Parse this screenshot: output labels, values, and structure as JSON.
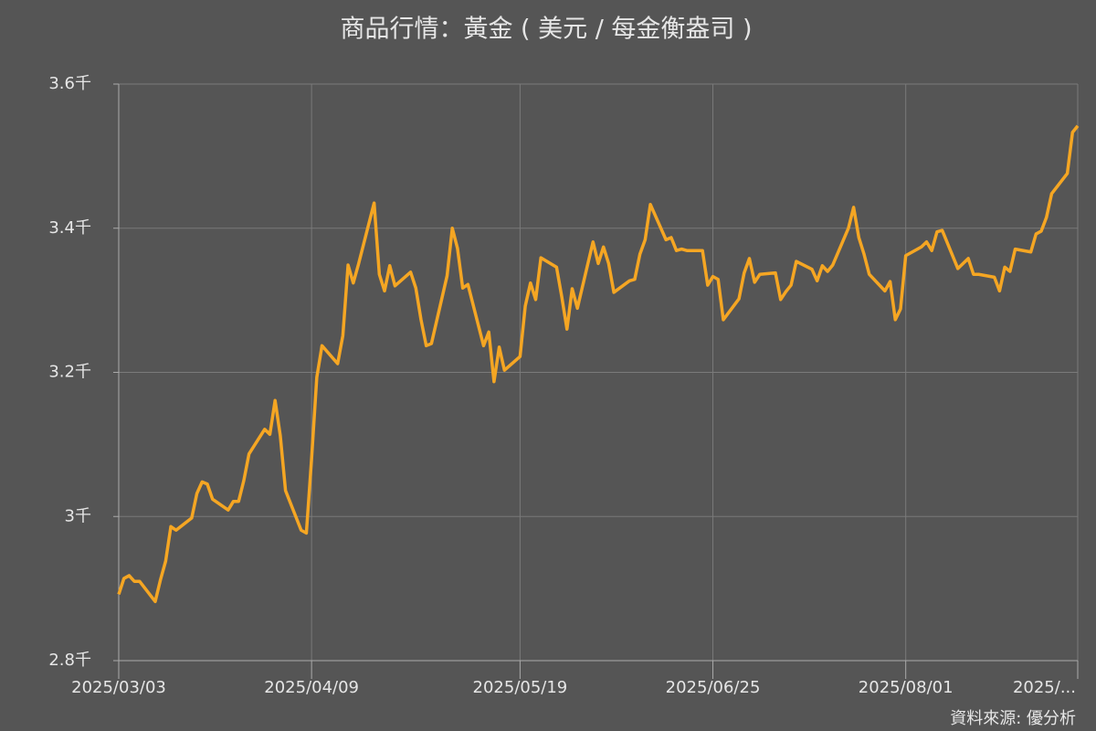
{
  "chart_data": {
    "type": "line",
    "title": "商品行情：黃金 ( 美元 / 每金衡盎司 )",
    "source": "資料來源: 優分析",
    "x": [
      "2025/03/03",
      "2025/03/04",
      "2025/03/05",
      "2025/03/06",
      "2025/03/07",
      "2025/03/10",
      "2025/03/11",
      "2025/03/12",
      "2025/03/13",
      "2025/03/14",
      "2025/03/17",
      "2025/03/18",
      "2025/03/19",
      "2025/03/20",
      "2025/03/21",
      "2025/03/24",
      "2025/03/25",
      "2025/03/26",
      "2025/03/27",
      "2025/03/28",
      "2025/03/31",
      "2025/04/01",
      "2025/04/02",
      "2025/04/03",
      "2025/04/04",
      "2025/04/07",
      "2025/04/08",
      "2025/04/09",
      "2025/04/10",
      "2025/04/11",
      "2025/04/14",
      "2025/04/15",
      "2025/04/16",
      "2025/04/17",
      "2025/04/18",
      "2025/04/21",
      "2025/04/22",
      "2025/04/23",
      "2025/04/24",
      "2025/04/25",
      "2025/04/28",
      "2025/04/29",
      "2025/04/30",
      "2025/05/01",
      "2025/05/02",
      "2025/05/05",
      "2025/05/06",
      "2025/05/07",
      "2025/05/08",
      "2025/05/09",
      "2025/05/12",
      "2025/05/13",
      "2025/05/14",
      "2025/05/15",
      "2025/05/16",
      "2025/05/19",
      "2025/05/20",
      "2025/05/21",
      "2025/05/22",
      "2025/05/23",
      "2025/05/26",
      "2025/05/27",
      "2025/05/28",
      "2025/05/29",
      "2025/05/30",
      "2025/06/02",
      "2025/06/03",
      "2025/06/04",
      "2025/06/05",
      "2025/06/06",
      "2025/06/09",
      "2025/06/10",
      "2025/06/11",
      "2025/06/12",
      "2025/06/13",
      "2025/06/16",
      "2025/06/17",
      "2025/06/18",
      "2025/06/19",
      "2025/06/20",
      "2025/06/23",
      "2025/06/24",
      "2025/06/25",
      "2025/06/26",
      "2025/06/27",
      "2025/06/30",
      "2025/07/01",
      "2025/07/02",
      "2025/07/03",
      "2025/07/04",
      "2025/07/07",
      "2025/07/08",
      "2025/07/09",
      "2025/07/10",
      "2025/07/11",
      "2025/07/14",
      "2025/07/15",
      "2025/07/16",
      "2025/07/17",
      "2025/07/18",
      "2025/07/21",
      "2025/07/22",
      "2025/07/23",
      "2025/07/24",
      "2025/07/25",
      "2025/07/28",
      "2025/07/29",
      "2025/07/30",
      "2025/07/31",
      "2025/08/01",
      "2025/08/04",
      "2025/08/05",
      "2025/08/06",
      "2025/08/07",
      "2025/08/08",
      "2025/08/11",
      "2025/08/12",
      "2025/08/13",
      "2025/08/14",
      "2025/08/15",
      "2025/08/18",
      "2025/08/19",
      "2025/08/20",
      "2025/08/21",
      "2025/08/22",
      "2025/08/25",
      "2025/08/26",
      "2025/08/27",
      "2025/08/28",
      "2025/08/29",
      "2025/09/01",
      "2025/09/02",
      "2025/09/03"
    ],
    "series": [
      {
        "name": "黃金",
        "color": "#f5a623",
        "values": [
          2892,
          2914,
          2918,
          2910,
          2910,
          2882,
          2912,
          2938,
          2986,
          2981,
          2998,
          3032,
          3048,
          3045,
          3024,
          3009,
          3021,
          3021,
          3050,
          3087,
          3121,
          3114,
          3161,
          3112,
          3036,
          2981,
          2977,
          3080,
          3193,
          3237,
          3212,
          3251,
          3349,
          3324,
          3350,
          3435,
          3336,
          3313,
          3348,
          3320,
          3339,
          3317,
          3273,
          3237,
          3240,
          3334,
          3400,
          3372,
          3317,
          3322,
          3237,
          3256,
          3187,
          3235,
          3203,
          3222,
          3292,
          3324,
          3301,
          3359,
          3346,
          3305,
          3260,
          3316,
          3289,
          3381,
          3351,
          3374,
          3351,
          3311,
          3327,
          3329,
          3364,
          3384,
          3433,
          3384,
          3387,
          3369,
          3371,
          3369,
          3369,
          3321,
          3333,
          3329,
          3273,
          3302,
          3338,
          3358,
          3325,
          3336,
          3338,
          3301,
          3312,
          3321,
          3354,
          3343,
          3327,
          3348,
          3340,
          3349,
          3400,
          3429,
          3387,
          3364,
          3336,
          3313,
          3326,
          3273,
          3288,
          3362,
          3374,
          3381,
          3369,
          3395,
          3397,
          3344,
          3351,
          3358,
          3336,
          3336,
          3332,
          3313,
          3346,
          3340,
          3371,
          3367,
          3392,
          3396,
          3415,
          3448,
          3476,
          3533,
          3542
        ]
      }
    ],
    "xlim": [
      "2025/03/03",
      "2025/09/03"
    ],
    "xticks": [
      "2025/03/03",
      "2025/04/09",
      "2025/05/19",
      "2025/06/25",
      "2025/08/01",
      {
        "value": "2025/09/03",
        "label": "2025/..."
      }
    ],
    "ylim": [
      2800,
      3600
    ],
    "yticks": [
      {
        "value": 2800,
        "label": "2.8千"
      },
      {
        "value": 3000,
        "label": "3千"
      },
      {
        "value": 3200,
        "label": "3.2千"
      },
      {
        "value": 3400,
        "label": "3.4千"
      },
      {
        "value": 3600,
        "label": "3.6千"
      }
    ],
    "grid": true
  }
}
